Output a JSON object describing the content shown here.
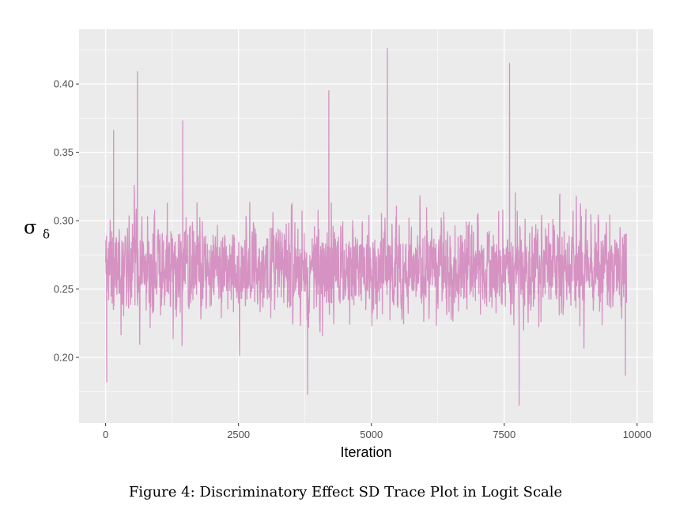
{
  "figure": {
    "caption": "Figure 4: Discriminatory Effect SD Trace Plot in Logit Scale"
  },
  "chart_data": {
    "type": "line",
    "title": "",
    "xlabel": "Iteration",
    "ylabel": {
      "symbol": "σ",
      "subscript": "δ"
    },
    "xlim": [
      -500,
      10300
    ],
    "ylim": [
      0.152,
      0.44
    ],
    "x_ticks": [
      0,
      2500,
      5000,
      7500,
      10000
    ],
    "x_tick_labels": [
      "0",
      "2500",
      "5000",
      "7500",
      "10000"
    ],
    "y_ticks": [
      0.2,
      0.25,
      0.3,
      0.35,
      0.4
    ],
    "y_tick_labels": [
      "0.20",
      "0.25",
      "0.30",
      "0.35",
      "0.40"
    ],
    "grid": true,
    "colors": {
      "series": "#cc6fb1",
      "panel_background": "#ebebeb",
      "grid_major": "#ffffff"
    },
    "series": [
      {
        "iterations": 9800,
        "mean": 0.265,
        "min": 0.165,
        "max": 0.426,
        "notable_points": [
          {
            "x": 20,
            "y": 0.182
          },
          {
            "x": 150,
            "y": 0.366
          },
          {
            "x": 600,
            "y": 0.409
          },
          {
            "x": 1450,
            "y": 0.373
          },
          {
            "x": 3800,
            "y": 0.173
          },
          {
            "x": 4200,
            "y": 0.395
          },
          {
            "x": 5300,
            "y": 0.426
          },
          {
            "x": 7600,
            "y": 0.415
          },
          {
            "x": 7780,
            "y": 0.165
          },
          {
            "x": 9780,
            "y": 0.187
          }
        ]
      }
    ]
  }
}
